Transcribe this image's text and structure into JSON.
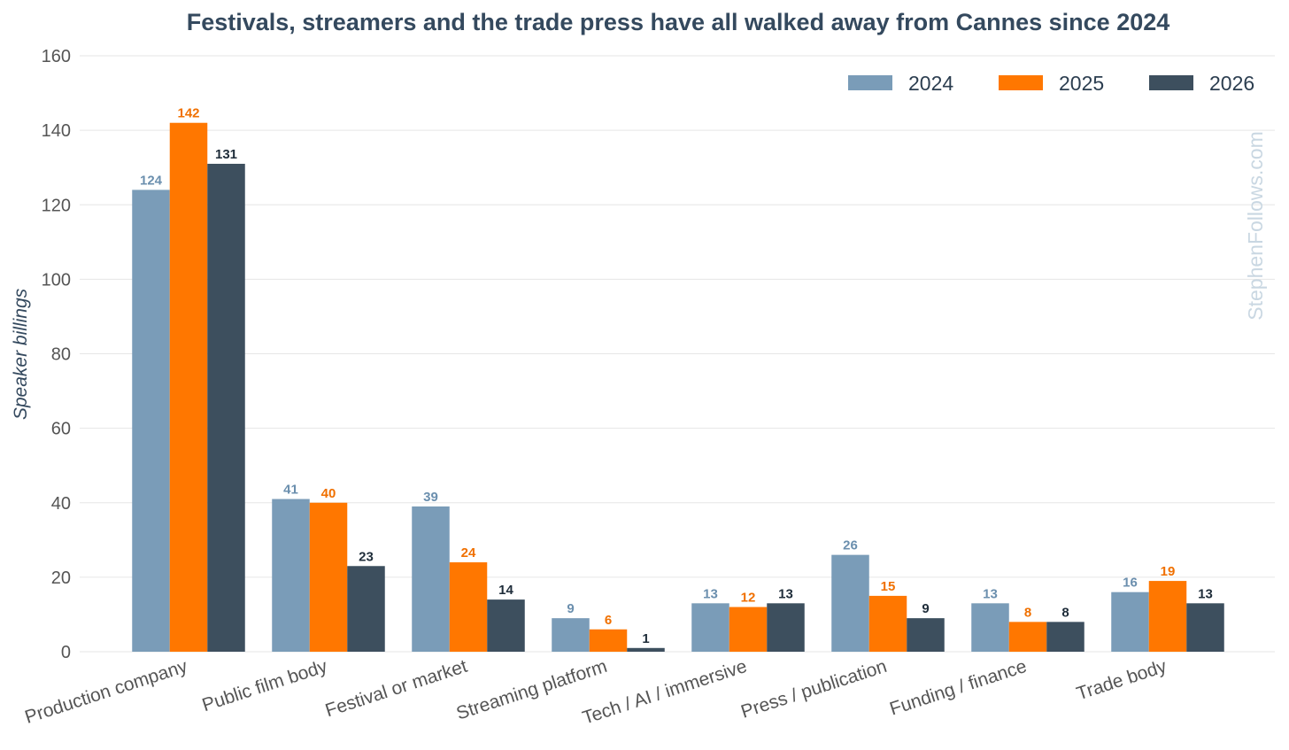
{
  "chart_data": {
    "type": "bar",
    "title": "Festivals, streamers and the trade press have all walked away from Cannes since 2024",
    "xlabel": "",
    "ylabel": "Speaker billings",
    "ylim": [
      0,
      160
    ],
    "yticks": [
      0,
      20,
      40,
      60,
      80,
      100,
      120,
      140,
      160
    ],
    "grid": true,
    "legend_position": "top-right",
    "categories": [
      "Production company",
      "Public film body",
      "Festival or market",
      "Streaming platform",
      "Tech / AI / immersive",
      "Press / publication",
      "Funding / finance",
      "Trade body"
    ],
    "series": [
      {
        "name": "2024",
        "color": "#7a9cb8",
        "label_color": "#6b8fae",
        "values": [
          124,
          41,
          39,
          9,
          13,
          26,
          13,
          16
        ]
      },
      {
        "name": "2025",
        "color": "#ff7700",
        "label_color": "#f07000",
        "values": [
          142,
          40,
          24,
          6,
          12,
          15,
          8,
          19
        ]
      },
      {
        "name": "2026",
        "color": "#3d4f5e",
        "label_color": "#1f2d3a",
        "values": [
          131,
          23,
          14,
          1,
          13,
          9,
          8,
          13
        ]
      }
    ],
    "watermark": "StephenFollows.com"
  }
}
